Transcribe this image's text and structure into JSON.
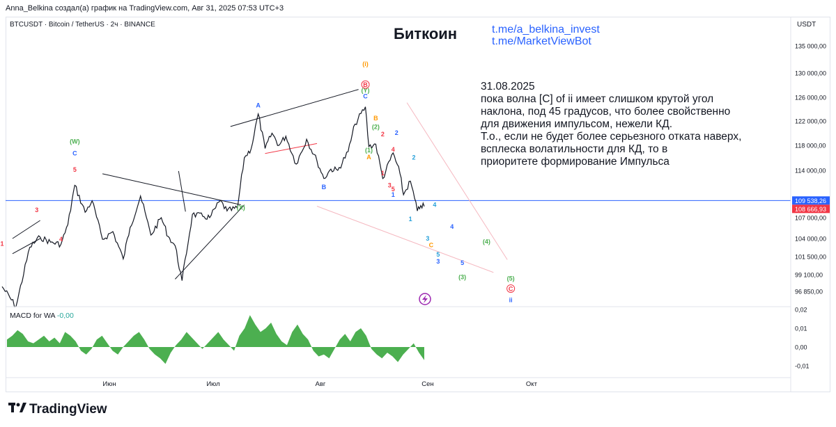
{
  "header": {
    "credit": "Anna_Belkina создал(а) график на TradingView.com, Авг 31, 2025 07:53 UTC+3",
    "symbol": "BTCUSDT · Bitcoin / TetherUS · 2ч · BINANCE",
    "currency": "USDT"
  },
  "annotations": {
    "title": "Биткоин",
    "link1": "t.me/a_belkina_invest",
    "link2": "t.me/MarketViewBot",
    "note": "31.08.2025\nпока волна [C] of ii имеет слишком крутой угол\nнаклона, под 45 градусов, что более свойственно\nдля движения импульсом, нежели КД.\nТ.о., если не будет более серьезного отката наверх,\nвсплеска волатильности для КД, то в\nприоритете формирование Импульса"
  },
  "macd": {
    "label": "MACD for WA",
    "value": "-0,00",
    "ticks": [
      "0,02",
      "0,01",
      "0,00",
      "-0,01"
    ]
  },
  "branding": "TradingView",
  "colors": {
    "bull_hist": "#4caf50",
    "price_line": "#131722",
    "level_line": "#2962ff",
    "red": "#f23645",
    "green": "#4caf50",
    "blue": "#2962ff",
    "orange": "#ff9800",
    "teal": "#26a0da"
  },
  "chart_data": {
    "type": "line",
    "title": "Биткоин",
    "x_ticks": [
      "Июн",
      "Июл",
      "Авг",
      "Сен",
      "Окт"
    ],
    "y_ticks": [
      135000,
      130000,
      126000,
      122000,
      118000,
      114000,
      107000,
      104000,
      101500,
      99100,
      96850
    ],
    "y_tick_labels": [
      "135 000,00",
      "130 000,00",
      "126 000,00",
      "122 000,00",
      "118 000,00",
      "114 000,00",
      "107 000,00",
      "104 000,00",
      "101 500,00",
      "99 100,00",
      "96 850,00"
    ],
    "price_labels": [
      {
        "value": 109538.26,
        "text": "109 538,26",
        "color": "#2962ff"
      },
      {
        "value": 108666.93,
        "text": "108 666,93",
        "color": "#f23645"
      }
    ],
    "level": 109538.26,
    "series": [
      {
        "points": [
          [
            "05-01",
            97500
          ],
          [
            "05-05",
            94800
          ],
          [
            "05-09",
            102800
          ],
          [
            "05-12",
            104200
          ],
          [
            "05-15",
            103500
          ],
          [
            "05-18",
            103200
          ],
          [
            "05-20",
            106000
          ],
          [
            "05-22",
            111800
          ],
          [
            "05-25",
            107800
          ],
          [
            "05-27",
            109500
          ],
          [
            "05-30",
            103900
          ],
          [
            "06-02",
            105000
          ],
          [
            "06-05",
            101200
          ],
          [
            "06-07",
            105600
          ],
          [
            "06-10",
            110200
          ],
          [
            "06-13",
            104500
          ],
          [
            "06-16",
            107000
          ],
          [
            "06-18",
            104300
          ],
          [
            "06-20",
            103000
          ],
          [
            "06-22",
            98300
          ],
          [
            "06-25",
            107500
          ],
          [
            "06-28",
            107200
          ],
          [
            "06-30",
            107000
          ],
          [
            "07-03",
            109500
          ],
          [
            "07-05",
            108000
          ],
          [
            "07-08",
            108400
          ],
          [
            "07-10",
            116000
          ],
          [
            "07-12",
            117500
          ],
          [
            "07-14",
            123200
          ],
          [
            "07-16",
            117500
          ],
          [
            "07-18",
            120000
          ],
          [
            "07-20",
            118000
          ],
          [
            "07-22",
            119500
          ],
          [
            "07-25",
            115000
          ],
          [
            "07-28",
            119000
          ],
          [
            "07-31",
            115500
          ],
          [
            "08-02",
            112800
          ],
          [
            "08-04",
            114200
          ],
          [
            "08-06",
            114000
          ],
          [
            "08-09",
            117000
          ],
          [
            "08-11",
            121500
          ],
          [
            "08-14",
            124400
          ],
          [
            "08-15",
            117800
          ],
          [
            "08-17",
            118200
          ],
          [
            "08-19",
            112800
          ],
          [
            "08-22",
            116800
          ],
          [
            "08-24",
            113500
          ],
          [
            "08-25",
            110400
          ],
          [
            "08-27",
            112400
          ],
          [
            "08-29",
            108000
          ],
          [
            "08-30",
            108800
          ],
          [
            "08-31",
            108666
          ]
        ]
      }
    ],
    "wave_labels": [
      {
        "text": "1",
        "date": "05-01",
        "price": 103000,
        "color": "#f23645"
      },
      {
        "text": "3",
        "date": "05-11",
        "price": 107800,
        "color": "#f23645"
      },
      {
        "text": "4",
        "date": "05-18",
        "price": 103600,
        "color": "#f23645"
      },
      {
        "text": "5",
        "date": "05-22",
        "price": 113800,
        "color": "#f23645"
      },
      {
        "text": "C",
        "date": "05-22",
        "price": 116400,
        "color": "#2962ff"
      },
      {
        "text": "(W)",
        "date": "05-22",
        "price": 118300,
        "color": "#4caf50"
      },
      {
        "text": "(X)",
        "date": "07-09",
        "price": 108200,
        "color": "#4caf50"
      },
      {
        "text": "A",
        "date": "07-14",
        "price": 124300,
        "color": "#2962ff"
      },
      {
        "text": "B",
        "date": "08-02",
        "price": 111200,
        "color": "#2962ff"
      },
      {
        "text": "C",
        "date": "08-14",
        "price": 125800,
        "color": "#2962ff"
      },
      {
        "text": "(Y)",
        "date": "08-14",
        "price": 126800,
        "color": "#4caf50"
      },
      {
        "text": "B",
        "date": "08-14",
        "price": 127700,
        "color": "#f23645"
      },
      {
        "text": "(i)",
        "date": "08-14",
        "price": 131300,
        "color": "#ff9800"
      },
      {
        "text": "B",
        "date": "08-17",
        "price": 122100,
        "color": "#ff9800"
      },
      {
        "text": "(2)",
        "date": "08-17",
        "price": 120700,
        "color": "#4caf50"
      },
      {
        "text": "2",
        "date": "08-19",
        "price": 119500,
        "color": "#f23645"
      },
      {
        "text": "(1)",
        "date": "08-15",
        "price": 116900,
        "color": "#4caf50"
      },
      {
        "text": "A",
        "date": "08-15",
        "price": 115800,
        "color": "#ff9800"
      },
      {
        "text": "1",
        "date": "08-19",
        "price": 113300,
        "color": "#f23645"
      },
      {
        "text": "4",
        "date": "08-22",
        "price": 117000,
        "color": "#f23645"
      },
      {
        "text": "2",
        "date": "08-23",
        "price": 119700,
        "color": "#2962ff"
      },
      {
        "text": "3",
        "date": "08-21",
        "price": 111500,
        "color": "#f23645"
      },
      {
        "text": "5",
        "date": "08-22",
        "price": 110900,
        "color": "#f23645"
      },
      {
        "text": "1",
        "date": "08-22",
        "price": 110100,
        "color": "#2962ff"
      },
      {
        "text": "2",
        "date": "08-28",
        "price": 115700,
        "color": "#26a0da"
      },
      {
        "text": "1",
        "date": "08-27",
        "price": 106500,
        "color": "#26a0da"
      },
      {
        "text": "4",
        "date": "09-03",
        "price": 108600,
        "color": "#26a0da"
      },
      {
        "text": "3",
        "date": "09-01",
        "price": 103700,
        "color": "#26a0da"
      },
      {
        "text": "C",
        "date": "09-02",
        "price": 102800,
        "color": "#ff9800"
      },
      {
        "text": "4",
        "date": "09-08",
        "price": 105400,
        "color": "#2962ff"
      },
      {
        "text": "5",
        "date": "09-04",
        "price": 101500,
        "color": "#26a0da"
      },
      {
        "text": "3",
        "date": "09-04",
        "price": 100600,
        "color": "#2962ff"
      },
      {
        "text": "5",
        "date": "09-11",
        "price": 100400,
        "color": "#2962ff"
      },
      {
        "text": "(4)",
        "date": "09-18",
        "price": 103300,
        "color": "#4caf50"
      },
      {
        "text": "(3)",
        "date": "09-11",
        "price": 98500,
        "color": "#4caf50"
      },
      {
        "text": "(5)",
        "date": "09-25",
        "price": 98300,
        "color": "#4caf50"
      },
      {
        "text": "C",
        "date": "09-25",
        "price": 96900,
        "color": "#f23645"
      },
      {
        "text": "ii",
        "date": "09-25",
        "price": 95400,
        "color": "#2962ff"
      }
    ],
    "trend_lines": [
      {
        "from": [
          "06-20",
          98500
        ],
        "to": [
          "07-10",
          108900
        ],
        "color": "#131722"
      },
      {
        "from": [
          "05-30",
          113500
        ],
        "to": [
          "07-09",
          108900
        ],
        "color": "#131722"
      },
      {
        "from": [
          "06-21",
          113900
        ],
        "to": [
          "06-23",
          107900
        ],
        "color": "#131722"
      },
      {
        "from": [
          "07-06",
          121100
        ],
        "to": [
          "08-12",
          127300
        ],
        "color": "#131722"
      },
      {
        "from": [
          "05-04",
          104000
        ],
        "to": [
          "05-12",
          106600
        ],
        "color": "#131722"
      },
      {
        "from": [
          "05-04",
          101900
        ],
        "to": [
          "05-12",
          104000
        ],
        "color": "#131722"
      },
      {
        "from": [
          "08-26",
          125100
        ],
        "to": [
          "09-24",
          101100
        ],
        "color": "#f5b8c0"
      },
      {
        "from": [
          "07-31",
          108700
        ],
        "to": [
          "09-20",
          99400
        ],
        "color": "#f5b8c0"
      },
      {
        "from": [
          "07-16",
          116700
        ],
        "to": [
          "07-31",
          118300
        ],
        "color": "#f23645"
      }
    ],
    "macd_hist": [
      0.004,
      0.006,
      0.009,
      0.007,
      0.003,
      0.002,
      0.004,
      0.006,
      0.003,
      0.005,
      0.002,
      0.008,
      0.006,
      0.003,
      -0.002,
      -0.004,
      -0.001,
      0.004,
      0.006,
      0.002,
      -0.002,
      -0.004,
      0.0,
      0.003,
      0.006,
      0.008,
      0.004,
      -0.001,
      -0.004,
      -0.006,
      -0.009,
      -0.003,
      0.001,
      0.004,
      0.008,
      0.005,
      0.002,
      -0.001,
      0.002,
      0.005,
      0.008,
      0.004,
      0.001,
      -0.002,
      0.006,
      0.01,
      0.017,
      0.012,
      0.008,
      0.01,
      0.013,
      0.007,
      0.003,
      0.001,
      0.008,
      0.012,
      0.007,
      0.004,
      -0.002,
      -0.005,
      -0.004,
      -0.006,
      -0.001,
      0.004,
      0.007,
      0.003,
      0.008,
      0.01,
      0.006,
      -0.001,
      -0.004,
      -0.006,
      -0.003,
      -0.005,
      -0.008,
      -0.004,
      -0.001,
      0.002,
      -0.003,
      -0.007
    ]
  }
}
